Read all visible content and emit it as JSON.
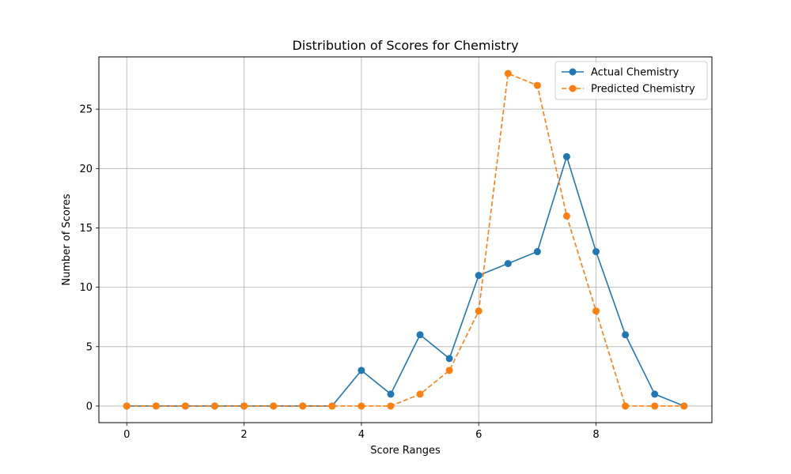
{
  "chart_data": {
    "type": "line",
    "title": "Distribution of Scores for Chemistry",
    "xlabel": "Score Ranges",
    "ylabel": "Number of Scores",
    "x": [
      0,
      0.5,
      1,
      1.5,
      2,
      2.5,
      3,
      3.5,
      4,
      4.5,
      5,
      5.5,
      6,
      6.5,
      7,
      7.5,
      8,
      8.5,
      9,
      9.5
    ],
    "series": [
      {
        "name": "Actual Chemistry",
        "values": [
          0,
          0,
          0,
          0,
          0,
          0,
          0,
          0,
          3,
          1,
          6,
          4,
          11,
          12,
          13,
          21,
          13,
          6,
          1,
          0
        ],
        "color": "#1f77b4",
        "style": "solid"
      },
      {
        "name": "Predicted Chemistry",
        "values": [
          0,
          0,
          0,
          0,
          0,
          0,
          0,
          0,
          0,
          0,
          1,
          3,
          8,
          28,
          27,
          16,
          8,
          0,
          0,
          0
        ],
        "color": "#ff7f0e",
        "style": "dashed"
      }
    ],
    "xlim": [
      -0.475,
      9.975
    ],
    "ylim": [
      -1.4,
      29.4
    ],
    "xticks": [
      0,
      2,
      4,
      6,
      8
    ],
    "yticks": [
      0,
      5,
      10,
      15,
      20,
      25
    ],
    "grid": true,
    "legend": "upper right"
  }
}
